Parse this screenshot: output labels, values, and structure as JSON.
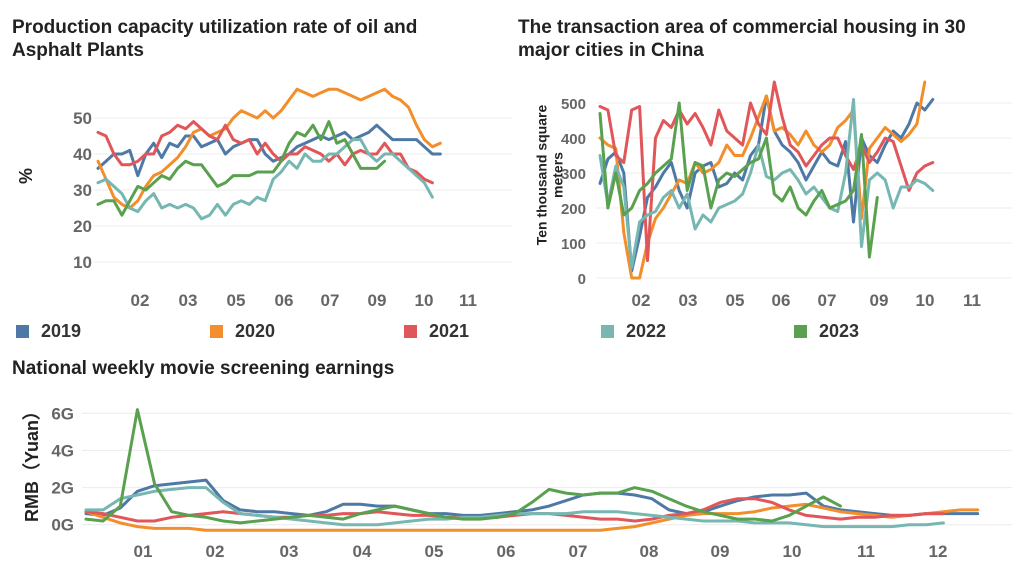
{
  "legend": [
    {
      "name": "2019",
      "color": "#4e79a7"
    },
    {
      "name": "2020",
      "color": "#f28e2b"
    },
    {
      "name": "2021",
      "color": "#e15759"
    },
    {
      "name": "2022",
      "color": "#76b7b2"
    },
    {
      "name": "2023",
      "color": "#59a14f"
    }
  ],
  "chart_data": [
    {
      "type": "line",
      "title": "Production capacity utilization rate of oil and Asphalt Plants",
      "ylabel": "%",
      "xlabel": "",
      "x_ticks": [
        "02",
        "03",
        "05",
        "06",
        "07",
        "09",
        "10",
        "11"
      ],
      "y_ticks": [
        10,
        20,
        30,
        40,
        50
      ],
      "ylim": [
        0,
        60
      ],
      "xlim": [
        0,
        52
      ],
      "grid": "horizontal",
      "series": [
        {
          "name": "2019",
          "values": [
            36,
            38,
            40,
            40,
            41,
            34,
            40,
            43,
            39,
            43,
            42,
            45,
            45,
            42,
            43,
            44,
            40,
            42,
            43,
            44,
            44,
            40,
            38,
            39,
            40,
            42,
            43,
            44,
            45,
            44,
            45,
            46,
            44,
            45,
            46,
            48,
            46,
            44,
            44,
            44,
            44,
            42,
            40,
            40
          ]
        },
        {
          "name": "2020",
          "values": [
            38,
            33,
            28,
            26,
            25,
            27,
            31,
            34,
            35,
            37,
            39,
            42,
            46,
            47,
            45,
            46,
            47,
            50,
            52,
            51,
            50,
            52,
            50,
            52,
            55,
            58,
            57,
            56,
            57,
            58,
            58,
            57,
            56,
            55,
            56,
            57,
            58,
            56,
            55,
            53,
            48,
            44,
            42,
            43
          ]
        },
        {
          "name": "2021",
          "values": [
            46,
            45,
            40,
            37,
            37,
            38,
            40,
            40,
            45,
            46,
            48,
            47,
            49,
            47,
            45,
            44,
            48,
            44,
            43,
            44,
            40,
            43,
            40,
            38,
            40,
            40,
            42,
            41,
            40,
            38,
            40,
            37,
            40,
            41,
            40,
            40,
            43,
            40,
            40,
            36,
            35,
            33,
            32
          ]
        },
        {
          "name": "2022",
          "values": [
            32,
            33,
            31,
            29,
            25,
            24,
            27,
            29,
            25,
            26,
            25,
            26,
            25,
            22,
            23,
            26,
            23,
            26,
            27,
            26,
            28,
            27,
            33,
            35,
            38,
            36,
            40,
            38,
            38,
            40,
            40,
            42,
            44,
            44,
            40,
            38,
            40,
            40,
            38,
            36,
            34,
            32,
            28
          ]
        },
        {
          "name": "2023",
          "values": [
            26,
            27,
            27,
            23,
            27,
            31,
            30,
            32,
            34,
            33,
            36,
            38,
            37,
            37,
            34,
            31,
            32,
            34,
            34,
            34,
            35,
            35,
            35,
            38,
            43,
            46,
            45,
            48,
            44,
            49,
            43,
            44,
            40,
            36,
            36,
            36,
            38
          ]
        }
      ]
    },
    {
      "type": "line",
      "title": "The transaction area of commercial housing in 30 major cities in China",
      "ylabel": "Ten thousand square meters",
      "xlabel": "",
      "x_ticks": [
        "02",
        "03",
        "05",
        "06",
        "07",
        "09",
        "10",
        "11"
      ],
      "y_ticks": [
        0,
        100,
        200,
        300,
        400,
        500
      ],
      "ylim": [
        0,
        560
      ],
      "xlim": [
        0,
        52
      ],
      "grid": "horizontal",
      "series": [
        {
          "name": "2019",
          "values": [
            270,
            340,
            360,
            300,
            20,
            120,
            230,
            260,
            300,
            330,
            250,
            200,
            300,
            320,
            330,
            260,
            270,
            300,
            280,
            350,
            380,
            520,
            420,
            380,
            360,
            330,
            280,
            320,
            360,
            330,
            320,
            390,
            160,
            400,
            350,
            330,
            380,
            420,
            400,
            440,
            500,
            480,
            510
          ]
        },
        {
          "name": "2020",
          "values": [
            400,
            380,
            370,
            130,
            0,
            0,
            100,
            170,
            200,
            240,
            280,
            270,
            330,
            300,
            310,
            330,
            380,
            350,
            350,
            400,
            460,
            520,
            420,
            430,
            410,
            380,
            420,
            380,
            360,
            380,
            430,
            450,
            480,
            170,
            370,
            400,
            430,
            410,
            390,
            410,
            440,
            560
          ]
        },
        {
          "name": "2021",
          "values": [
            490,
            480,
            350,
            330,
            480,
            490,
            50,
            400,
            450,
            430,
            480,
            440,
            470,
            430,
            380,
            480,
            420,
            400,
            380,
            500,
            440,
            410,
            560,
            460,
            380,
            360,
            320,
            350,
            380,
            400,
            400,
            350,
            310,
            380,
            330,
            360,
            400,
            390,
            320,
            250,
            300,
            320,
            330
          ]
        },
        {
          "name": "2022",
          "values": [
            350,
            210,
            320,
            260,
            30,
            160,
            180,
            190,
            230,
            250,
            200,
            240,
            140,
            180,
            160,
            200,
            210,
            220,
            240,
            300,
            380,
            290,
            280,
            300,
            310,
            280,
            240,
            260,
            230,
            200,
            190,
            300,
            510,
            90,
            280,
            300,
            280,
            200,
            260,
            260,
            280,
            270,
            250
          ]
        },
        {
          "name": "2023",
          "values": [
            470,
            200,
            300,
            180,
            200,
            250,
            270,
            300,
            320,
            340,
            500,
            250,
            330,
            320,
            200,
            280,
            300,
            290,
            310,
            330,
            340,
            400,
            240,
            220,
            260,
            200,
            180,
            220,
            250,
            200,
            210,
            220,
            250,
            410,
            60,
            230
          ]
        }
      ]
    },
    {
      "type": "line",
      "title": "National weekly movie screening earnings",
      "ylabel": "RMB（Yuan）",
      "xlabel": "",
      "x_ticks": [
        "01",
        "02",
        "03",
        "04",
        "05",
        "06",
        "07",
        "08",
        "09",
        "10",
        "11",
        "12"
      ],
      "y_ticks": [
        "0G",
        "2G",
        "4G",
        "6G"
      ],
      "ylim": [
        -0.5,
        6.5
      ],
      "xlim": [
        0,
        54
      ],
      "grid": "horizontal",
      "series": [
        {
          "name": "2019",
          "values": [
            0.6,
            0.5,
            0.9,
            1.8,
            2.1,
            2.2,
            2.3,
            2.4,
            1.3,
            0.8,
            0.7,
            0.7,
            0.6,
            0.5,
            0.7,
            1.1,
            1.1,
            1.0,
            1.0,
            0.8,
            0.6,
            0.6,
            0.5,
            0.5,
            0.6,
            0.7,
            0.8,
            1.0,
            1.3,
            1.6,
            1.7,
            1.7,
            1.6,
            1.4,
            0.8,
            0.6,
            0.7,
            1.0,
            1.3,
            1.5,
            1.6,
            1.6,
            1.7,
            1.0,
            0.8,
            0.7,
            0.6,
            0.5,
            0.5,
            0.6,
            0.6,
            0.6,
            0.6
          ]
        },
        {
          "name": "2020",
          "values": [
            0.7,
            0.4,
            0.1,
            -0.1,
            -0.2,
            -0.2,
            -0.2,
            -0.3,
            -0.3,
            -0.3,
            -0.3,
            -0.3,
            -0.3,
            -0.3,
            -0.3,
            -0.3,
            -0.3,
            -0.3,
            -0.3,
            -0.3,
            -0.3,
            -0.3,
            -0.3,
            -0.3,
            -0.3,
            -0.3,
            -0.3,
            -0.3,
            -0.3,
            -0.3,
            -0.3,
            -0.2,
            -0.1,
            0.1,
            0.3,
            0.5,
            0.6,
            0.6,
            0.6,
            0.7,
            0.9,
            1.0,
            1.1,
            0.9,
            0.7,
            0.6,
            0.5,
            0.4,
            0.5,
            0.6,
            0.7,
            0.8,
            0.8
          ]
        },
        {
          "name": "2021",
          "values": [
            0.7,
            0.6,
            0.4,
            0.2,
            0.2,
            0.4,
            0.5,
            0.6,
            0.7,
            0.6,
            0.5,
            0.4,
            0.4,
            0.5,
            0.5,
            0.6,
            0.6,
            0.7,
            0.6,
            0.5,
            0.5,
            0.4,
            0.4,
            0.4,
            0.4,
            0.5,
            0.6,
            0.6,
            0.5,
            0.4,
            0.3,
            0.3,
            0.2,
            0.3,
            0.5,
            0.6,
            0.8,
            1.2,
            1.4,
            1.4,
            1.2,
            0.8,
            0.5,
            0.4,
            0.3,
            0.4,
            0.4,
            0.5,
            0.5,
            0.6,
            0.6
          ]
        },
        {
          "name": "2022",
          "values": [
            0.8,
            0.8,
            1.4,
            1.6,
            1.8,
            1.9,
            2.0,
            2.0,
            1.2,
            0.6,
            0.5,
            0.4,
            0.3,
            0.2,
            0.1,
            0.0,
            0.0,
            0.0,
            0.1,
            0.2,
            0.3,
            0.3,
            0.4,
            0.4,
            0.5,
            0.6,
            0.6,
            0.6,
            0.6,
            0.7,
            0.7,
            0.7,
            0.6,
            0.5,
            0.4,
            0.3,
            0.2,
            0.2,
            0.2,
            0.1,
            0.1,
            0.1,
            0.0,
            -0.1,
            -0.1,
            -0.1,
            -0.1,
            -0.1,
            0.0,
            0.0,
            0.1
          ]
        },
        {
          "name": "2023",
          "values": [
            0.3,
            0.2,
            1.0,
            6.2,
            2.2,
            0.7,
            0.5,
            0.4,
            0.2,
            0.1,
            0.2,
            0.3,
            0.4,
            0.5,
            0.4,
            0.3,
            0.6,
            0.8,
            1.0,
            0.8,
            0.6,
            0.4,
            0.3,
            0.3,
            0.4,
            0.6,
            1.2,
            1.9,
            1.7,
            1.6,
            1.7,
            1.7,
            2.0,
            1.8,
            1.4,
            1.0,
            0.7,
            0.5,
            0.3,
            0.3,
            0.2,
            0.5,
            1.0,
            1.5,
            1.0
          ]
        }
      ]
    }
  ]
}
